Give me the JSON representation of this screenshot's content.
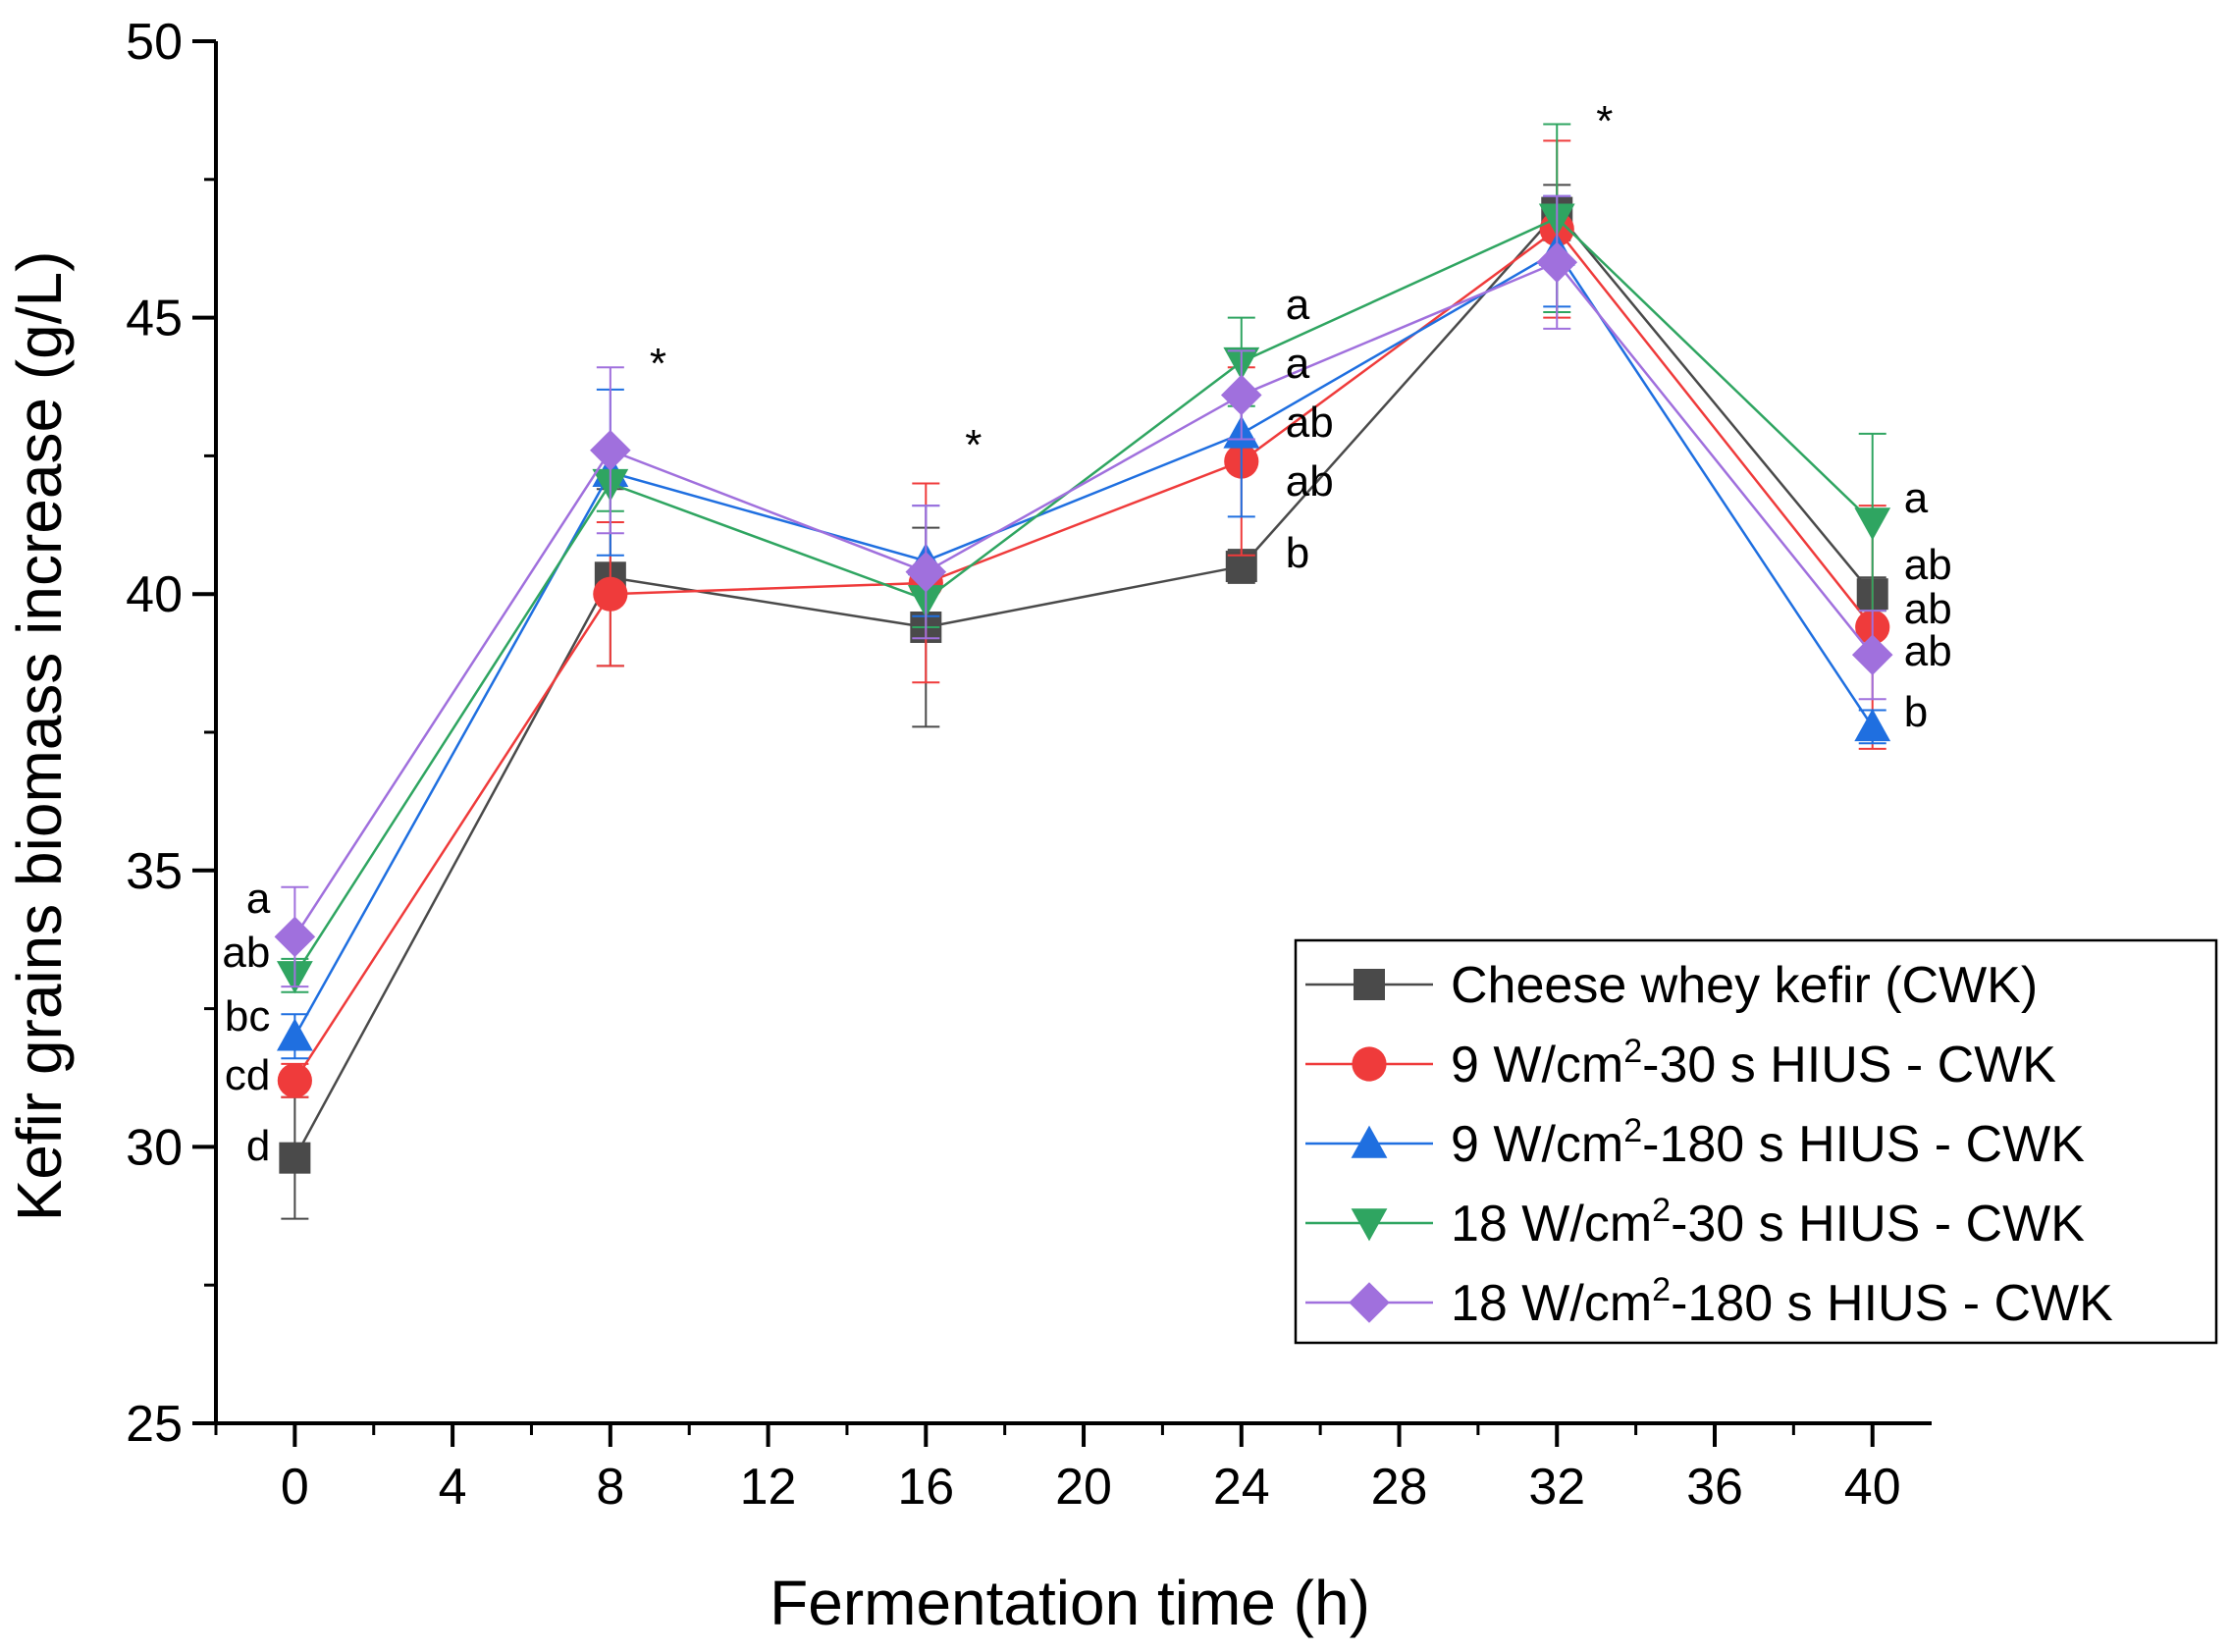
{
  "chart_data": {
    "type": "line",
    "xlabel": "Fermentation time (h)",
    "ylabel": "Kefir grains biomass increase (g/L)",
    "xlim": [
      -2,
      41.5
    ],
    "ylim": [
      25,
      50
    ],
    "xticks": [
      0,
      4,
      8,
      12,
      16,
      20,
      24,
      28,
      32,
      36,
      40
    ],
    "yticks": [
      25,
      30,
      35,
      40,
      45,
      50
    ],
    "legend_position": "right",
    "series": [
      {
        "name": "Cheese whey kefir (CWK)",
        "color": "#4a4a4a",
        "marker": "square",
        "x": [
          0,
          8,
          16,
          24,
          32,
          40
        ],
        "values": [
          29.8,
          40.3,
          39.4,
          40.5,
          46.9,
          40.0
        ],
        "errors": [
          1.1,
          1.6,
          1.8,
          0.3,
          0.5,
          0.3
        ],
        "letters": [
          "d",
          "",
          "",
          "b",
          "",
          "ab"
        ]
      },
      {
        "name": "9 W/cm²-30 s HIUS - CWK",
        "name_parts": [
          "9 W/cm",
          "2",
          "-30 s HIUS - CWK"
        ],
        "color": "#ef3b3b",
        "marker": "circle",
        "x": [
          0,
          8,
          16,
          24,
          32,
          40
        ],
        "values": [
          31.2,
          40.0,
          40.2,
          42.4,
          46.6,
          39.4
        ],
        "errors": [
          0.3,
          1.3,
          1.8,
          1.7,
          1.6,
          2.2
        ],
        "letters": [
          "cd",
          "",
          "",
          "ab",
          "",
          "ab"
        ]
      },
      {
        "name": "9 W/cm²-180 s HIUS - CWK",
        "name_parts": [
          "9 W/cm",
          "2",
          "-180 s HIUS - CWK"
        ],
        "color": "#1f6fe0",
        "marker": "triangle-up",
        "x": [
          0,
          8,
          16,
          24,
          32,
          40
        ],
        "values": [
          32.0,
          42.2,
          40.6,
          42.9,
          46.2,
          37.6
        ],
        "errors": [
          0.4,
          1.5,
          1.0,
          1.5,
          1.0,
          0.3
        ],
        "letters": [
          "bc",
          "",
          "",
          "ab",
          "",
          "b"
        ]
      },
      {
        "name": "18 W/cm²-30 s HIUS - CWK",
        "name_parts": [
          "18 W/cm",
          "2",
          "-30 s HIUS - CWK"
        ],
        "color": "#2fa561",
        "marker": "triangle-down",
        "x": [
          0,
          8,
          16,
          24,
          32,
          40
        ],
        "values": [
          33.1,
          42.0,
          39.9,
          44.2,
          46.8,
          41.3
        ],
        "errors": [
          0.3,
          0.5,
          0.5,
          0.8,
          1.7,
          1.6
        ],
        "letters": [
          "ab",
          "",
          "",
          "a",
          "",
          "a"
        ]
      },
      {
        "name": "18 W/cm²-180 s HIUS - CWK",
        "name_parts": [
          "18 W/cm",
          "2",
          "-180 s HIUS - CWK"
        ],
        "color": "#a070dd",
        "marker": "diamond",
        "x": [
          0,
          8,
          16,
          24,
          32,
          40
        ],
        "values": [
          33.8,
          42.6,
          40.4,
          43.6,
          46.0,
          38.9
        ],
        "errors": [
          0.9,
          1.5,
          1.2,
          0.8,
          1.2,
          0.8
        ],
        "letters": [
          "a",
          "",
          "",
          "a",
          "",
          "ab"
        ]
      }
    ],
    "significance": [
      {
        "x": 8,
        "label": "*"
      },
      {
        "x": 16,
        "label": "*"
      },
      {
        "x": 32,
        "label": "*"
      }
    ]
  }
}
